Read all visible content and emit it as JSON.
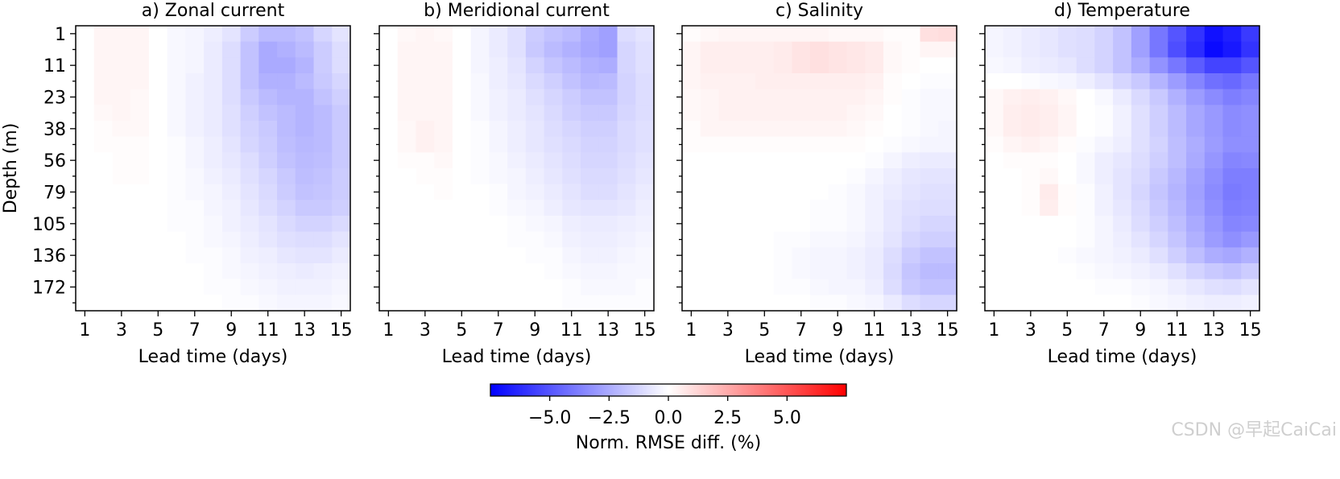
{
  "chart_data": {
    "type": "heatmap",
    "panels": [
      {
        "title": "a) Zonal current",
        "key": "zonal",
        "show_ylabel": true
      },
      {
        "title": "b) Meridional current",
        "key": "meridional",
        "show_ylabel": false
      },
      {
        "title": "c) Salinity",
        "key": "salinity",
        "show_ylabel": false
      },
      {
        "title": "d) Temperature",
        "key": "temperature",
        "show_ylabel": false
      }
    ],
    "xlabel": "Lead time (days)",
    "ylabel": "Depth (m)",
    "x_ticks": [
      1,
      3,
      5,
      7,
      9,
      11,
      13,
      15
    ],
    "lead_days": [
      1,
      2,
      3,
      4,
      5,
      6,
      7,
      8,
      9,
      10,
      11,
      12,
      13,
      14,
      15
    ],
    "y_ticks": [
      "1",
      "11",
      "23",
      "38",
      "56",
      "79",
      "105",
      "136",
      "172"
    ],
    "n_depth_levels": 18,
    "colorbar": {
      "label": "Norm. RMSE diff. (%)",
      "ticks": [
        "−5.0",
        "−2.5",
        "0.0",
        "2.5",
        "5.0"
      ],
      "tick_values": [
        -5,
        -2.5,
        0,
        2.5,
        5
      ],
      "vmin": -7.5,
      "vmax": 7.5,
      "cmap": "bwr"
    },
    "values": {
      "zonal": [
        [
          0,
          0.3,
          0.3,
          0.3,
          0,
          -0.2,
          -0.3,
          -0.5,
          -0.8,
          -1.5,
          -2.0,
          -2.0,
          -1.8,
          -1.2,
          -0.8
        ],
        [
          0,
          0.3,
          0.3,
          0.3,
          0,
          -0.2,
          -0.3,
          -0.6,
          -1.0,
          -1.8,
          -2.5,
          -2.3,
          -2.0,
          -1.5,
          -1.0
        ],
        [
          0,
          0.3,
          0.3,
          0.3,
          0,
          -0.2,
          -0.3,
          -0.6,
          -1.0,
          -1.8,
          -2.5,
          -2.5,
          -2.2,
          -1.5,
          -1.0
        ],
        [
          0,
          0.3,
          0.3,
          0.3,
          0,
          -0.2,
          -0.4,
          -0.6,
          -1.0,
          -1.8,
          -2.3,
          -2.3,
          -2.0,
          -1.6,
          -1.2
        ],
        [
          0,
          0.3,
          0.3,
          0.2,
          0,
          -0.2,
          -0.4,
          -0.6,
          -1.0,
          -1.6,
          -2.0,
          -2.2,
          -2.2,
          -1.8,
          -1.4
        ],
        [
          0,
          0.2,
          0.3,
          0.2,
          0,
          -0.2,
          -0.4,
          -0.6,
          -0.9,
          -1.4,
          -1.8,
          -2.0,
          -2.2,
          -2.0,
          -1.6
        ],
        [
          0,
          0.1,
          0.2,
          0.2,
          0,
          -0.2,
          -0.4,
          -0.6,
          -0.9,
          -1.3,
          -1.6,
          -2.0,
          -2.2,
          -2.0,
          -1.6
        ],
        [
          0,
          0.1,
          0.1,
          0.1,
          0,
          -0.1,
          -0.3,
          -0.5,
          -0.8,
          -1.2,
          -1.5,
          -1.9,
          -2.1,
          -2.0,
          -1.6
        ],
        [
          0,
          0,
          0.1,
          0.1,
          0,
          -0.1,
          -0.3,
          -0.5,
          -0.7,
          -1.0,
          -1.4,
          -1.8,
          -2.0,
          -1.9,
          -1.6
        ],
        [
          0,
          0,
          0.1,
          0.1,
          0,
          -0.1,
          -0.2,
          -0.4,
          -0.6,
          -0.9,
          -1.2,
          -1.6,
          -1.9,
          -1.8,
          -1.5
        ],
        [
          0,
          0,
          0,
          0,
          0,
          -0.1,
          -0.2,
          -0.3,
          -0.5,
          -0.8,
          -1.1,
          -1.5,
          -1.8,
          -1.7,
          -1.5
        ],
        [
          0,
          0,
          0,
          0,
          0,
          -0.1,
          -0.1,
          -0.3,
          -0.4,
          -0.7,
          -1.0,
          -1.3,
          -1.6,
          -1.6,
          -1.4
        ],
        [
          0,
          0,
          0,
          0,
          0,
          -0.1,
          -0.1,
          -0.2,
          -0.4,
          -0.6,
          -0.8,
          -1.1,
          -1.3,
          -1.3,
          -1.1
        ],
        [
          0,
          0,
          0,
          0,
          0,
          0,
          -0.1,
          -0.2,
          -0.3,
          -0.5,
          -0.7,
          -0.9,
          -1.0,
          -1.0,
          -0.8
        ],
        [
          0,
          0,
          0,
          0,
          0,
          0,
          -0.1,
          -0.1,
          -0.2,
          -0.4,
          -0.5,
          -0.7,
          -0.8,
          -0.8,
          -0.6
        ],
        [
          0,
          0,
          0,
          0,
          0,
          0,
          0,
          -0.1,
          -0.2,
          -0.3,
          -0.4,
          -0.5,
          -0.6,
          -0.5,
          -0.4
        ],
        [
          0,
          0,
          0,
          0,
          0,
          0,
          0,
          -0.1,
          -0.1,
          -0.2,
          -0.3,
          -0.4,
          -0.4,
          -0.4,
          -0.3
        ],
        [
          0,
          0,
          0,
          0,
          0,
          0,
          0,
          0,
          -0.1,
          -0.1,
          -0.2,
          -0.3,
          -0.3,
          -0.3,
          -0.2
        ]
      ],
      "meridional": [
        [
          0,
          0.2,
          0.3,
          0.2,
          0,
          -0.3,
          -0.6,
          -0.9,
          -1.5,
          -1.8,
          -2.0,
          -2.5,
          -2.8,
          -1.0,
          -0.8
        ],
        [
          0,
          0.3,
          0.3,
          0.3,
          0,
          -0.3,
          -0.6,
          -0.9,
          -1.6,
          -2.0,
          -2.3,
          -2.6,
          -2.8,
          -1.2,
          -0.9
        ],
        [
          0,
          0.3,
          0.3,
          0.3,
          0,
          -0.3,
          -0.5,
          -0.8,
          -1.3,
          -1.7,
          -2.0,
          -2.3,
          -2.4,
          -1.2,
          -0.9
        ],
        [
          0,
          0.3,
          0.3,
          0.3,
          0,
          -0.2,
          -0.5,
          -0.7,
          -1.1,
          -1.4,
          -1.8,
          -2.1,
          -2.0,
          -1.3,
          -1.0
        ],
        [
          0,
          0.3,
          0.3,
          0.3,
          0,
          -0.2,
          -0.4,
          -0.6,
          -0.9,
          -1.2,
          -1.5,
          -1.8,
          -1.8,
          -1.3,
          -1.0
        ],
        [
          0,
          0.3,
          0.3,
          0.3,
          0,
          -0.2,
          -0.4,
          -0.6,
          -0.8,
          -1.1,
          -1.4,
          -1.6,
          -1.6,
          -1.2,
          -1.0
        ],
        [
          0,
          0.2,
          0.4,
          0.3,
          0,
          -0.1,
          -0.3,
          -0.5,
          -0.7,
          -1.0,
          -1.2,
          -1.4,
          -1.4,
          -1.1,
          -0.9
        ],
        [
          0,
          0.2,
          0.4,
          0.3,
          0,
          -0.1,
          -0.3,
          -0.5,
          -0.7,
          -0.9,
          -1.1,
          -1.3,
          -1.3,
          -1.1,
          -0.9
        ],
        [
          0,
          0.1,
          0.1,
          0.2,
          0,
          -0.1,
          -0.2,
          -0.4,
          -0.6,
          -0.8,
          -1.0,
          -1.2,
          -1.2,
          -1.0,
          -0.8
        ],
        [
          0,
          0,
          0.1,
          0.1,
          0,
          -0.1,
          -0.2,
          -0.3,
          -0.5,
          -0.7,
          -0.9,
          -1.1,
          -1.1,
          -0.9,
          -0.7
        ],
        [
          0,
          0,
          0,
          0.1,
          0,
          0,
          -0.1,
          -0.3,
          -0.4,
          -0.6,
          -0.8,
          -1.0,
          -1.0,
          -0.8,
          -0.6
        ],
        [
          0,
          0,
          0,
          0,
          0,
          0,
          -0.1,
          -0.2,
          -0.3,
          -0.5,
          -0.7,
          -0.8,
          -0.8,
          -0.7,
          -0.5
        ],
        [
          0,
          0,
          0,
          0,
          0,
          0,
          0,
          -0.1,
          -0.2,
          -0.3,
          -0.5,
          -0.6,
          -0.6,
          -0.5,
          -0.4
        ],
        [
          0,
          0,
          0,
          0,
          0,
          0,
          0,
          -0.1,
          -0.1,
          -0.2,
          -0.4,
          -0.5,
          -0.5,
          -0.4,
          -0.3
        ],
        [
          0,
          0,
          0,
          0,
          0,
          0,
          0,
          0,
          -0.1,
          -0.1,
          -0.3,
          -0.4,
          -0.4,
          -0.3,
          -0.2
        ],
        [
          0,
          0,
          0,
          0,
          0,
          0,
          0,
          0,
          0,
          -0.1,
          -0.2,
          -0.3,
          -0.3,
          -0.2,
          -0.2
        ],
        [
          0,
          0,
          0,
          0,
          0,
          0,
          0,
          0,
          0,
          0,
          -0.1,
          -0.2,
          -0.2,
          -0.2,
          -0.1
        ],
        [
          0,
          0,
          0,
          0,
          0,
          0,
          0,
          0,
          0,
          0,
          -0.1,
          -0.1,
          -0.1,
          -0.1,
          -0.1
        ]
      ],
      "salinity": [
        [
          0.1,
          0.2,
          0.3,
          0.3,
          0.3,
          0.3,
          0.3,
          0.3,
          0.2,
          0.2,
          0.2,
          0.1,
          0.1,
          0.9,
          1.0
        ],
        [
          0.3,
          0.5,
          0.5,
          0.5,
          0.5,
          0.6,
          0.8,
          0.9,
          0.8,
          0.7,
          0.6,
          0.2,
          0.1,
          0.3,
          0.3
        ],
        [
          0.3,
          0.5,
          0.5,
          0.5,
          0.5,
          0.6,
          0.8,
          0.9,
          0.8,
          0.7,
          0.6,
          0.2,
          0.1,
          0,
          0
        ],
        [
          0.3,
          0.4,
          0.4,
          0.4,
          0.5,
          0.5,
          0.5,
          0.5,
          0.5,
          0.5,
          0.4,
          0.1,
          0,
          -0.1,
          -0.1
        ],
        [
          0.2,
          0.3,
          0.4,
          0.4,
          0.4,
          0.4,
          0.4,
          0.4,
          0.4,
          0.4,
          0.3,
          0.1,
          -0.1,
          -0.2,
          -0.2
        ],
        [
          0.2,
          0.3,
          0.4,
          0.4,
          0.4,
          0.4,
          0.4,
          0.4,
          0.4,
          0.3,
          0.2,
          0,
          -0.1,
          -0.2,
          -0.2
        ],
        [
          0.1,
          0.3,
          0.3,
          0.3,
          0.3,
          0.3,
          0.3,
          0.3,
          0.3,
          0.2,
          0.1,
          0,
          -0.1,
          -0.2,
          -0.3
        ],
        [
          0.1,
          0.1,
          0.1,
          0.1,
          0.1,
          0.1,
          0.1,
          0.1,
          0.1,
          0.1,
          0,
          -0.1,
          -0.2,
          -0.3,
          -0.3
        ],
        [
          0,
          0,
          0,
          0,
          0,
          0,
          0,
          0,
          0,
          0,
          -0.1,
          -0.3,
          -0.5,
          -0.6,
          -0.6
        ],
        [
          0,
          0,
          0,
          0,
          0,
          0,
          0,
          0,
          0,
          -0.1,
          -0.3,
          -0.5,
          -0.7,
          -0.8,
          -0.8
        ],
        [
          0,
          0,
          0,
          0,
          0,
          0,
          0,
          0,
          -0.1,
          -0.2,
          -0.4,
          -0.6,
          -0.8,
          -0.9,
          -0.9
        ],
        [
          0,
          0,
          0,
          0,
          0,
          0,
          0,
          -0.1,
          -0.1,
          -0.2,
          -0.4,
          -0.7,
          -0.9,
          -1.0,
          -1.0
        ],
        [
          0,
          0,
          0,
          0,
          0,
          0,
          0,
          -0.1,
          -0.1,
          -0.2,
          -0.4,
          -0.7,
          -1.0,
          -1.2,
          -1.2
        ],
        [
          0,
          0,
          0,
          0,
          0,
          -0.1,
          -0.1,
          -0.2,
          -0.2,
          -0.3,
          -0.5,
          -0.8,
          -1.2,
          -1.4,
          -1.4
        ],
        [
          0,
          0,
          0,
          0,
          0,
          -0.1,
          -0.2,
          -0.3,
          -0.3,
          -0.4,
          -0.6,
          -1.0,
          -1.5,
          -1.8,
          -1.8
        ],
        [
          0,
          0,
          0,
          0,
          0,
          -0.1,
          -0.2,
          -0.3,
          -0.3,
          -0.4,
          -0.6,
          -1.1,
          -1.7,
          -2.0,
          -2.0
        ],
        [
          0,
          0,
          0,
          0,
          0,
          -0.1,
          -0.1,
          -0.2,
          -0.3,
          -0.3,
          -0.5,
          -1.0,
          -1.6,
          -1.8,
          -1.8
        ],
        [
          0,
          0,
          0,
          0,
          0,
          0,
          0,
          -0.1,
          -0.1,
          -0.2,
          -0.3,
          -0.6,
          -1.0,
          -1.2,
          -1.2
        ]
      ],
      "temperature": [
        [
          -0.3,
          -0.4,
          -0.6,
          -0.7,
          -0.9,
          -1.0,
          -1.3,
          -1.8,
          -2.8,
          -4.0,
          -5.0,
          -6.0,
          -7.0,
          -6.6,
          -5.8
        ],
        [
          -0.3,
          -0.4,
          -0.6,
          -0.7,
          -0.9,
          -1.0,
          -1.3,
          -1.8,
          -2.8,
          -4.0,
          -5.2,
          -6.2,
          -7.2,
          -6.8,
          -6.0
        ],
        [
          -0.2,
          -0.3,
          -0.5,
          -0.6,
          -0.7,
          -1.0,
          -1.3,
          -1.8,
          -2.4,
          -3.2,
          -4.0,
          -4.8,
          -5.5,
          -5.5,
          -5.0
        ],
        [
          0,
          0,
          -0.1,
          -0.2,
          -0.3,
          -0.5,
          -0.8,
          -1.2,
          -1.6,
          -2.2,
          -2.9,
          -3.6,
          -4.2,
          -4.4,
          -4.0
        ],
        [
          0.2,
          0.4,
          0.5,
          0.4,
          0.2,
          0,
          -0.2,
          -0.6,
          -1.1,
          -1.6,
          -2.3,
          -2.9,
          -3.4,
          -3.8,
          -3.6
        ],
        [
          0.2,
          0.5,
          0.6,
          0.5,
          0.3,
          0,
          -0.1,
          -0.4,
          -0.9,
          -1.4,
          -2.0,
          -2.6,
          -3.0,
          -3.4,
          -3.3
        ],
        [
          0.2,
          0.5,
          0.6,
          0.5,
          0.3,
          0,
          -0.1,
          -0.4,
          -0.9,
          -1.4,
          -2.0,
          -2.6,
          -3.0,
          -3.4,
          -3.3
        ],
        [
          0.1,
          0.3,
          0.4,
          0.3,
          0.1,
          -0.1,
          -0.3,
          -0.5,
          -0.9,
          -1.3,
          -1.9,
          -2.4,
          -2.9,
          -3.3,
          -3.3
        ],
        [
          0,
          0.1,
          0.1,
          0.1,
          0,
          -0.2,
          -0.5,
          -0.7,
          -1.0,
          -1.4,
          -1.9,
          -2.5,
          -3.1,
          -3.6,
          -3.5
        ],
        [
          0,
          0,
          0.1,
          0.2,
          0,
          -0.2,
          -0.5,
          -0.8,
          -1.1,
          -1.6,
          -2.1,
          -2.7,
          -3.3,
          -3.8,
          -3.8
        ],
        [
          0,
          0,
          0.1,
          0.6,
          0.1,
          -0.1,
          -0.4,
          -0.8,
          -1.2,
          -1.7,
          -2.2,
          -2.8,
          -3.4,
          -3.9,
          -3.8
        ],
        [
          0,
          0,
          0.1,
          0.5,
          0.1,
          -0.1,
          -0.4,
          -0.7,
          -1.1,
          -1.6,
          -2.1,
          -2.7,
          -3.3,
          -3.8,
          -3.7
        ],
        [
          0,
          0,
          0,
          0,
          0,
          -0.1,
          -0.3,
          -0.6,
          -1.0,
          -1.4,
          -1.9,
          -2.5,
          -3.1,
          -3.6,
          -3.5
        ],
        [
          0,
          0,
          0,
          0,
          0,
          -0.1,
          -0.3,
          -0.5,
          -0.8,
          -1.2,
          -1.7,
          -2.3,
          -2.9,
          -3.3,
          -3.0
        ],
        [
          0,
          0,
          0,
          0,
          -0.1,
          -0.2,
          -0.3,
          -0.4,
          -0.6,
          -0.9,
          -1.4,
          -1.9,
          -2.4,
          -2.6,
          -2.3
        ],
        [
          0,
          0,
          0,
          0,
          0,
          -0.1,
          -0.2,
          -0.3,
          -0.4,
          -0.6,
          -0.9,
          -1.3,
          -1.6,
          -1.8,
          -1.5
        ],
        [
          0,
          0,
          0,
          0,
          0,
          0,
          -0.1,
          -0.1,
          -0.2,
          -0.3,
          -0.5,
          -0.7,
          -0.9,
          -1.0,
          -0.8
        ],
        [
          0,
          0,
          0,
          0,
          0,
          0,
          0,
          0,
          -0.1,
          -0.2,
          -0.3,
          -0.4,
          -0.5,
          -0.5,
          -0.4
        ]
      ]
    }
  },
  "watermark": "CSDN @早起CaiCai"
}
